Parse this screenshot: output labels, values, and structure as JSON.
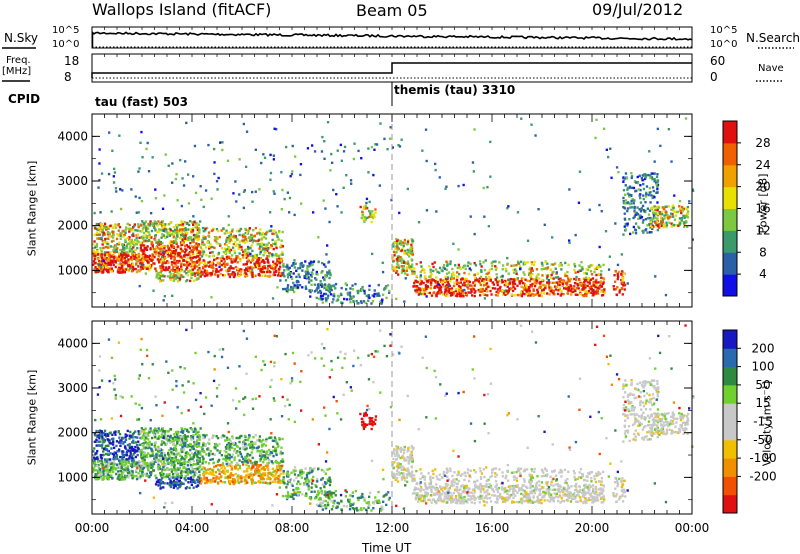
{
  "header": {
    "station": "Wallops Island (fitACF)",
    "beam": "Beam 05",
    "date": "09/Jul/2012"
  },
  "top_panel": {
    "left_label": "N.Sky",
    "right_label": "N.Search",
    "left_ticks": [
      "10^5",
      "10^0"
    ],
    "right_ticks": [
      "10^5",
      "10^0"
    ]
  },
  "freq_panel": {
    "left_label_top": "Freq.",
    "left_label_bottom": "[MHz]",
    "left_ticks": [
      "18",
      "8"
    ],
    "right_label": "Nave",
    "right_ticks": [
      "60",
      "0"
    ]
  },
  "cpid": {
    "label": "CPID",
    "segments": [
      {
        "label": "tau (fast) 503",
        "start_hour": 0
      },
      {
        "label": "themis (tau) 3310",
        "start_hour": 12
      }
    ]
  },
  "colors": {
    "power": [
      "#1010e6",
      "#2a60a8",
      "#3a9a6a",
      "#7dc840",
      "#e8e000",
      "#f0a000",
      "#f06000",
      "#e01010"
    ],
    "velocity": [
      "#1818c0",
      "#2a6ab0",
      "#2e8a40",
      "#70d030",
      "#c8c8c8",
      "#c8c8c8",
      "#f0c000",
      "#f09000",
      "#f05000",
      "#e01010"
    ]
  },
  "chart_data": [
    {
      "type": "heatmap",
      "name": "power",
      "xlabel": "",
      "ylabel": "Slant Range [km]",
      "xlim": [
        0,
        24
      ],
      "ylim": [
        180,
        4500
      ],
      "y_ticks": [
        "1000",
        "2000",
        "3000",
        "4000"
      ],
      "colorbar": {
        "label": "Power [dB]",
        "ticks": [
          "4",
          "8",
          "12",
          "16",
          "20",
          "24",
          "28"
        ]
      }
    },
    {
      "type": "heatmap",
      "name": "velocity",
      "xlabel": "Time UT",
      "ylabel": "Slant Range [km]",
      "xlim": [
        0,
        24
      ],
      "ylim": [
        180,
        4500
      ],
      "x_ticks": [
        "00:00",
        "04:00",
        "08:00",
        "12:00",
        "16:00",
        "20:00",
        "00:00"
      ],
      "y_ticks": [
        "1000",
        "2000",
        "3000",
        "4000"
      ],
      "colorbar": {
        "label": "Velocity [m s⁻¹]",
        "ticks": [
          "200",
          "100",
          "50",
          "15",
          "-15",
          "-50",
          "-100",
          "-200"
        ]
      }
    }
  ]
}
